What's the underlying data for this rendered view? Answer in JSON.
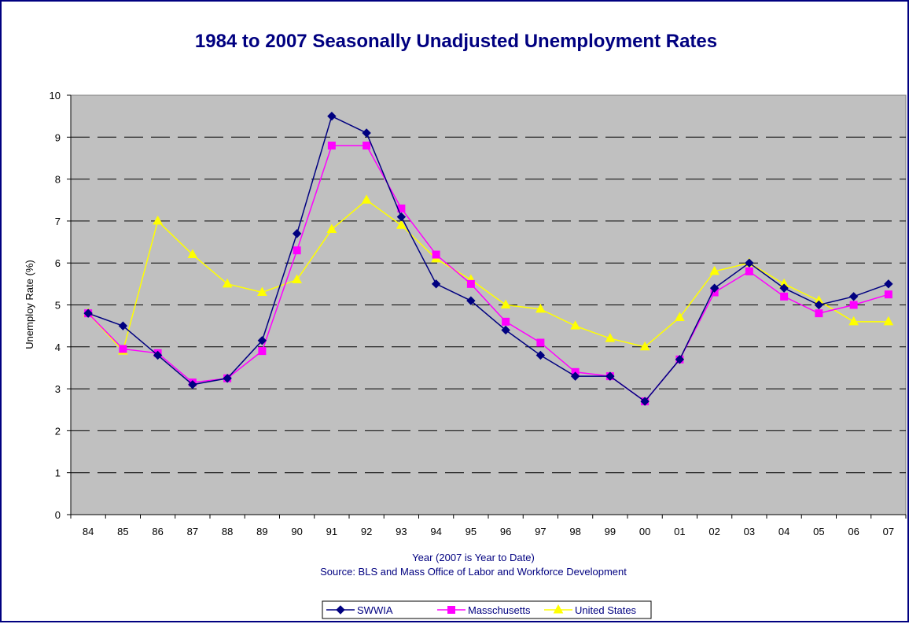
{
  "chart_data": {
    "type": "line",
    "title": "1984 to 2007 Seasonally Unadjusted Unemployment Rates",
    "xlabel": "Year (2007 is Year to Date)",
    "source": "Source: BLS and Mass Office of Labor and Workforce Development",
    "ylabel": "Unemploy Rate (%)",
    "ylim": [
      0,
      10
    ],
    "yticks": [
      "0",
      "1",
      "2",
      "3",
      "4",
      "5",
      "6",
      "7",
      "8",
      "9",
      "10"
    ],
    "categories": [
      "84",
      "85",
      "86",
      "87",
      "88",
      "89",
      "90",
      "91",
      "92",
      "93",
      "94",
      "95",
      "96",
      "97",
      "98",
      "99",
      "00",
      "01",
      "02",
      "03",
      "04",
      "05",
      "06",
      "07"
    ],
    "grid": true,
    "legend_position": "bottom",
    "series": [
      {
        "name": "SWWIA",
        "color": "#000080",
        "marker": "diamond",
        "values": [
          4.8,
          4.5,
          3.8,
          3.1,
          3.25,
          4.15,
          6.7,
          9.5,
          9.1,
          7.1,
          5.5,
          5.1,
          4.4,
          3.8,
          3.3,
          3.3,
          2.7,
          3.7,
          5.4,
          6.0,
          5.4,
          5.0,
          5.2,
          5.5
        ]
      },
      {
        "name": "Masschusetts",
        "color": "#ff00ff",
        "marker": "square",
        "values": [
          4.8,
          3.95,
          3.85,
          3.15,
          3.25,
          3.9,
          6.3,
          8.8,
          8.8,
          7.3,
          6.2,
          5.5,
          4.6,
          4.1,
          3.4,
          3.3,
          2.7,
          3.7,
          5.3,
          5.8,
          5.2,
          4.8,
          5.0,
          5.25
        ]
      },
      {
        "name": "United States",
        "color": "#ffff00",
        "marker": "triangle",
        "values": [
          4.8,
          3.9,
          7.0,
          6.2,
          5.5,
          5.3,
          5.6,
          6.8,
          7.5,
          6.9,
          6.1,
          5.6,
          5.0,
          4.9,
          4.5,
          4.2,
          4.0,
          4.7,
          5.8,
          6.0,
          5.5,
          5.1,
          4.6,
          4.6
        ]
      }
    ],
    "colors": {
      "plot_background": "#c0c0c0",
      "gridline": "#000000",
      "title": "#000080",
      "frame_border": "#000080"
    }
  }
}
